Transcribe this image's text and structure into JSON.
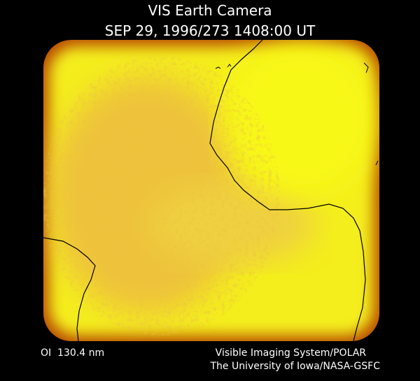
{
  "header": {
    "title": "VIS Earth Camera",
    "timestamp": "SEP 29, 1996/273 1408:00 UT"
  },
  "footer": {
    "wavelength": "OI  130.4 nm",
    "instrument": "Visible Imaging System/POLAR",
    "credit": "The University of Iowa/NASA-GSFC"
  }
}
